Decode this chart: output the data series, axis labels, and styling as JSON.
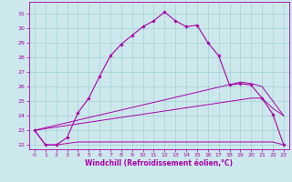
{
  "xlabel": "Windchill (Refroidissement éolien,°C)",
  "xlim": [
    -0.5,
    23.5
  ],
  "ylim": [
    21.7,
    31.8
  ],
  "yticks": [
    22,
    23,
    24,
    25,
    26,
    27,
    28,
    29,
    30,
    31
  ],
  "xticks": [
    0,
    1,
    2,
    3,
    4,
    5,
    6,
    7,
    8,
    9,
    10,
    11,
    12,
    13,
    14,
    15,
    16,
    17,
    18,
    19,
    20,
    21,
    22,
    23
  ],
  "bg_color": "#cce8ec",
  "line_color": "#aa00aa",
  "grid_color": "#99cccc",
  "series1_x": [
    0,
    1,
    2,
    3,
    4,
    5,
    6,
    7,
    8,
    9,
    10,
    11,
    12,
    13,
    14,
    15,
    16,
    17,
    18,
    19,
    20,
    21,
    22,
    23
  ],
  "series1_y": [
    23.0,
    22.0,
    22.0,
    22.5,
    24.2,
    25.2,
    26.7,
    28.1,
    28.9,
    29.5,
    30.1,
    30.5,
    31.1,
    30.5,
    30.1,
    30.2,
    29.0,
    28.1,
    26.1,
    26.2,
    26.1,
    25.2,
    24.1,
    22.0
  ],
  "series2_x": [
    0,
    1,
    2,
    3,
    4,
    5,
    6,
    7,
    8,
    9,
    10,
    11,
    12,
    13,
    14,
    15,
    16,
    17,
    18,
    19,
    20,
    21,
    22,
    23
  ],
  "series2_y": [
    23.0,
    22.0,
    22.0,
    22.1,
    22.2,
    22.2,
    22.2,
    22.2,
    22.2,
    22.2,
    22.2,
    22.2,
    22.2,
    22.2,
    22.2,
    22.2,
    22.2,
    22.2,
    22.2,
    22.2,
    22.2,
    22.2,
    22.2,
    22.0
  ],
  "series3_x": [
    0,
    20,
    21,
    22,
    23
  ],
  "series3_y": [
    23.0,
    25.2,
    25.2,
    24.5,
    24.0
  ],
  "series4_x": [
    0,
    19,
    20,
    21,
    22,
    23
  ],
  "series4_y": [
    23.0,
    26.3,
    26.2,
    26.0,
    25.0,
    24.0
  ],
  "xlabel_fontsize": 5.5,
  "tick_fontsize": 4.5
}
